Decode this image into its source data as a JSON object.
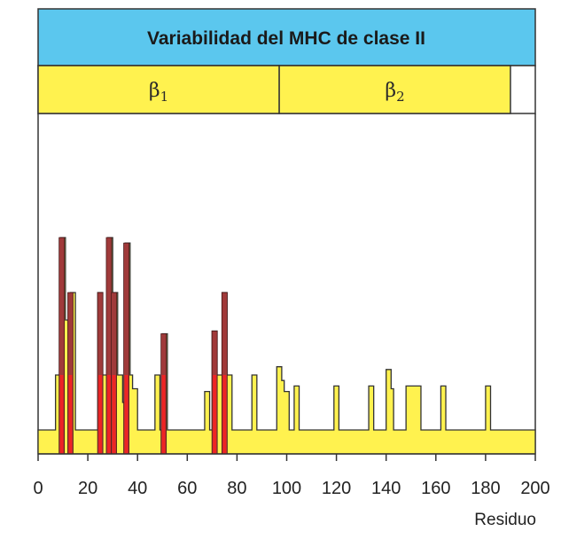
{
  "chart_data": {
    "type": "bar",
    "title": "Variabilidad del MHC de clase II",
    "xlabel": "Residuo",
    "ylabel": "",
    "xlim": [
      0,
      200
    ],
    "xticks": [
      0,
      20,
      40,
      60,
      80,
      100,
      120,
      140,
      160,
      180,
      200
    ],
    "ylim": [
      0,
      10
    ],
    "grid": false,
    "domains": [
      {
        "name": "β",
        "sub": "1",
        "start": 0,
        "end": 97
      },
      {
        "name": "β",
        "sub": "2",
        "start": 97,
        "end": 190
      }
    ],
    "colors": {
      "title_band": "#5bc7ee",
      "domain_band": "#fff24f",
      "profile_fill": "#fff24f",
      "profile_line": "#333333",
      "variable_residue": "#a03a3a",
      "variable_residue_highlight": "#ee2424"
    },
    "baseline_level": 1,
    "variability_profile": [
      [
        0,
        1
      ],
      [
        7,
        3
      ],
      [
        9,
        8
      ],
      [
        11,
        5
      ],
      [
        13,
        6
      ],
      [
        15,
        1
      ],
      [
        24,
        6
      ],
      [
        26,
        3
      ],
      [
        28,
        8
      ],
      [
        30,
        6
      ],
      [
        32,
        3
      ],
      [
        34,
        2
      ],
      [
        35,
        7.8
      ],
      [
        37,
        3
      ],
      [
        38,
        2.5
      ],
      [
        40,
        1
      ],
      [
        47,
        3
      ],
      [
        49,
        1
      ],
      [
        50,
        4.5
      ],
      [
        52,
        1
      ],
      [
        67,
        2.4
      ],
      [
        69,
        1
      ],
      [
        70,
        4.6
      ],
      [
        72,
        3
      ],
      [
        74,
        6
      ],
      [
        76,
        3
      ],
      [
        78,
        1
      ],
      [
        86,
        3
      ],
      [
        88,
        1
      ],
      [
        96,
        3.3
      ],
      [
        98,
        2.8
      ],
      [
        99,
        2.4
      ],
      [
        101,
        1
      ],
      [
        103,
        2.6
      ],
      [
        105,
        1
      ],
      [
        119,
        2.6
      ],
      [
        121,
        1
      ],
      [
        133,
        2.6
      ],
      [
        135,
        1
      ],
      [
        140,
        3.2
      ],
      [
        142,
        2.5
      ],
      [
        143,
        1
      ],
      [
        148,
        2.6
      ],
      [
        154,
        1
      ],
      [
        162,
        2.6
      ],
      [
        164,
        1
      ],
      [
        180,
        2.6
      ],
      [
        182,
        1
      ],
      [
        200,
        1
      ]
    ],
    "variable_residues": [
      {
        "residue": 9.5,
        "value": 8
      },
      {
        "residue": 13,
        "value": 6
      },
      {
        "residue": 25,
        "value": 6
      },
      {
        "residue": 28.5,
        "value": 8
      },
      {
        "residue": 30.5,
        "value": 6
      },
      {
        "residue": 35.5,
        "value": 7.8
      },
      {
        "residue": 50.5,
        "value": 4.5
      },
      {
        "residue": 71,
        "value": 4.6
      },
      {
        "residue": 75,
        "value": 6
      }
    ]
  }
}
